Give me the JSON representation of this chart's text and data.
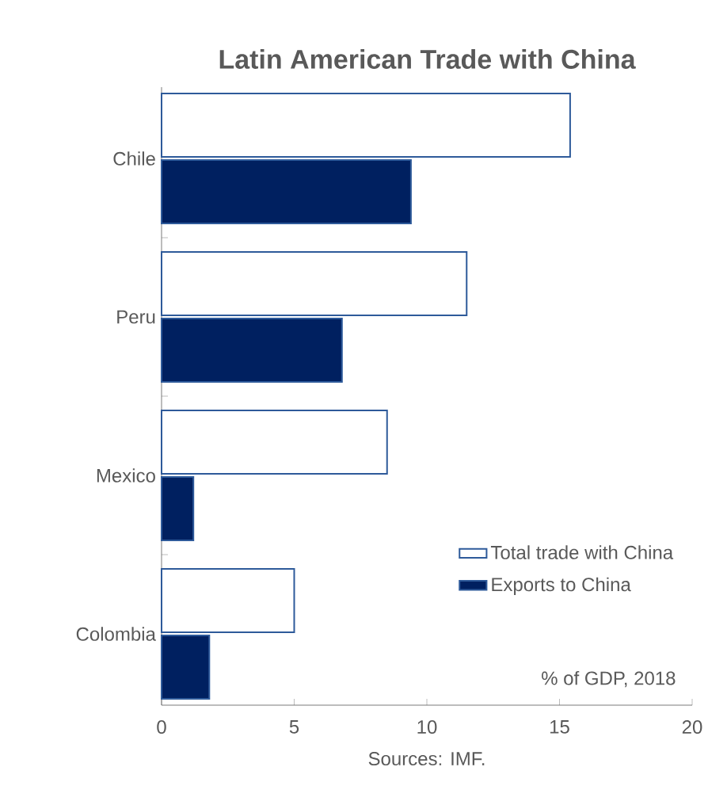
{
  "chart_data": {
    "type": "bar",
    "orientation": "horizontal",
    "title": "Latin American Trade with China",
    "categories": [
      "Chile",
      "Peru",
      "Mexico",
      "Colombia"
    ],
    "series": [
      {
        "name": "Total trade with China",
        "color": "#ffffff",
        "values": [
          15.4,
          11.5,
          8.5,
          5.0
        ]
      },
      {
        "name": "Exports to China",
        "color": "#002060",
        "values": [
          9.4,
          6.8,
          1.2,
          1.8
        ]
      }
    ],
    "xlim": [
      0,
      20
    ],
    "xticks": [
      0,
      5,
      10,
      15,
      20
    ],
    "grid": false,
    "legend": "bottom right",
    "annotations": [
      "% of GDP, 2018",
      "Sources: IMF."
    ]
  }
}
